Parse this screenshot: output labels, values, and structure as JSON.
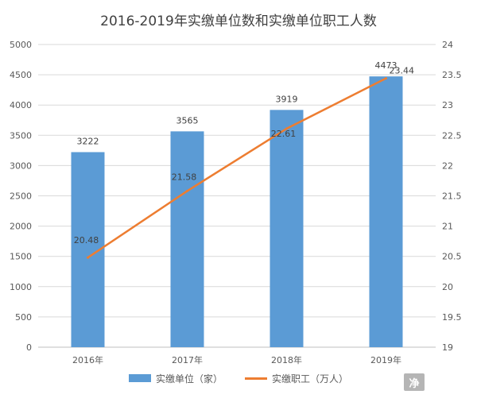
{
  "chart_data": {
    "type": "bar",
    "title": "2016-2019年实缴单位数和实缴单位职工人数",
    "categories": [
      "2016年",
      "2017年",
      "2018年",
      "2019年"
    ],
    "series": [
      {
        "name": "实缴单位（家）",
        "type": "bar",
        "axis": "left",
        "color": "#5b9bd5",
        "values": [
          3222,
          3565,
          3919,
          4473
        ],
        "data_labels": [
          "3222",
          "3565",
          "3919",
          "4473"
        ]
      },
      {
        "name": "实缴职工（万人）",
        "type": "line",
        "axis": "right",
        "color": "#ed7d31",
        "values": [
          20.48,
          21.58,
          22.61,
          23.44
        ],
        "data_labels": [
          "20.48",
          "21.58",
          "22.61",
          "23.44"
        ]
      }
    ],
    "y_left": {
      "ylim": [
        0,
        5000
      ],
      "ticks": [
        "0",
        "500",
        "1000",
        "1500",
        "2000",
        "2500",
        "3000",
        "3500",
        "4000",
        "4500",
        "5000"
      ]
    },
    "y_right": {
      "ylim": [
        19,
        24
      ],
      "ticks": [
        "19",
        "19.5",
        "20",
        "20.5",
        "21",
        "21.5",
        "22",
        "22.5",
        "23",
        "23.5",
        "24"
      ]
    },
    "grid": true,
    "legend_position": "bottom"
  },
  "legend": {
    "bar_label": "实缴单位（家）",
    "line_label": "实缴职工（万人）"
  },
  "watermark": {
    "text": "净",
    "color": "#b5b5b5"
  }
}
